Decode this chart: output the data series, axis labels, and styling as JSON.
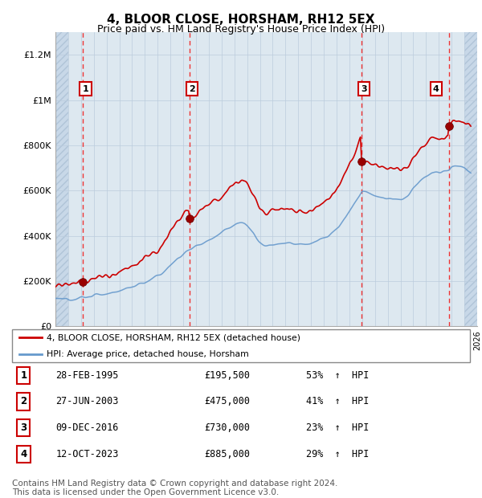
{
  "title": "4, BLOOR CLOSE, HORSHAM, RH12 5EX",
  "subtitle": "Price paid vs. HM Land Registry's House Price Index (HPI)",
  "property_label": "4, BLOOR CLOSE, HORSHAM, RH12 5EX (detached house)",
  "hpi_label": "HPI: Average price, detached house, Horsham",
  "transactions": [
    {
      "num": 1,
      "date": "28-FEB-1995",
      "price": 195500,
      "year": 1995.16,
      "pct": "53%",
      "dir": "↑"
    },
    {
      "num": 2,
      "date": "27-JUN-2003",
      "price": 475000,
      "year": 2003.49,
      "pct": "41%",
      "dir": "↑"
    },
    {
      "num": 3,
      "date": "09-DEC-2016",
      "price": 730000,
      "year": 2016.94,
      "pct": "23%",
      "dir": "↑"
    },
    {
      "num": 4,
      "date": "12-OCT-2023",
      "price": 885000,
      "year": 2023.78,
      "pct": "29%",
      "dir": "↑"
    }
  ],
  "property_color": "#cc0000",
  "hpi_color": "#6699cc",
  "vline_color": "#ee3333",
  "background_color": "#dde8f0",
  "hatch_bg_color": "#c8d8e8",
  "grid_color": "#bbccdd",
  "xmin": 1993,
  "xmax": 2026,
  "ymin": 0,
  "ymax": 1300000,
  "yticks": [
    0,
    200000,
    400000,
    600000,
    800000,
    1000000,
    1200000
  ],
  "ylabels": [
    "£0",
    "£200K",
    "£400K",
    "£600K",
    "£800K",
    "£1M",
    "£1.2M"
  ],
  "footer": "Contains HM Land Registry data © Crown copyright and database right 2024.\nThis data is licensed under the Open Government Licence v3.0.",
  "footnote_fontsize": 7.5,
  "title_fontsize": 11,
  "subtitle_fontsize": 9
}
